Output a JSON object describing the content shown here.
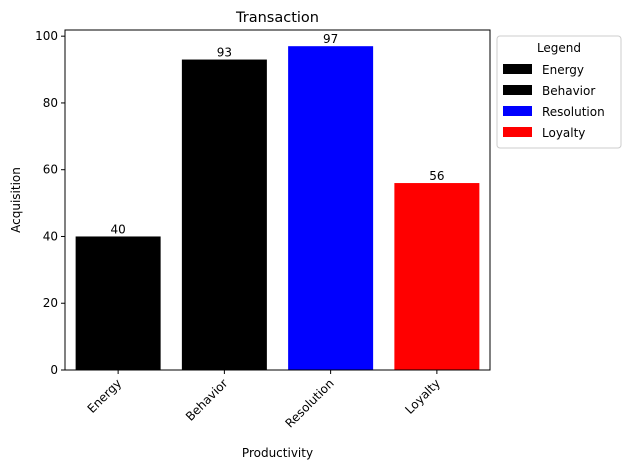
{
  "chart_data": {
    "type": "bar",
    "title": "Transaction",
    "xlabel": "Productivity",
    "ylabel": "Acquisition",
    "categories": [
      "Energy",
      "Behavior",
      "Resolution",
      "Loyalty"
    ],
    "values": [
      40,
      93,
      97,
      56
    ],
    "colors": [
      "#000000",
      "#000000",
      "#0000ff",
      "#ff0000"
    ],
    "ylim": [
      0,
      101.85
    ],
    "yticks": [
      0,
      20,
      40,
      60,
      80,
      100
    ],
    "grid": false,
    "legend": {
      "title": "Legend",
      "position": "outside-top-right",
      "entries": [
        {
          "label": "Energy",
          "color": "#000000"
        },
        {
          "label": "Behavior",
          "color": "#000000"
        },
        {
          "label": "Resolution",
          "color": "#0000ff"
        },
        {
          "label": "Loyalty",
          "color": "#ff0000"
        }
      ]
    }
  }
}
